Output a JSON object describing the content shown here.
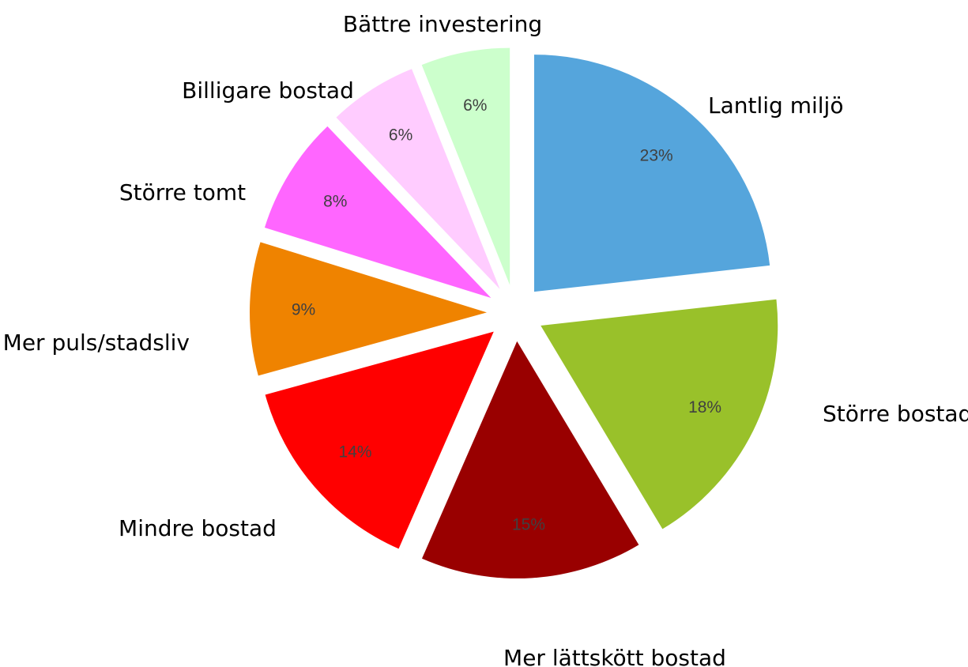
{
  "chart_data": {
    "type": "pie",
    "exploded": true,
    "start_angle_deg": 0,
    "direction": "clockwise",
    "title": "",
    "label_format": "percent",
    "slices": [
      {
        "label": "Lantlig miljö",
        "value": 23,
        "value_label": "23%",
        "color": "#55A5DC"
      },
      {
        "label": "Större bostad",
        "value": 18,
        "value_label": "18%",
        "color": "#99C12A"
      },
      {
        "label": "Mer lättskött bostad",
        "value": 15,
        "value_label": "15%",
        "color": "#990000"
      },
      {
        "label": "Mindre bostad",
        "value": 14,
        "value_label": "14%",
        "color": "#FF0000"
      },
      {
        "label": "Mer puls/stadsliv",
        "value": 9,
        "value_label": "9%",
        "color": "#EF8300"
      },
      {
        "label": "Större tomt",
        "value": 8,
        "value_label": "8%",
        "color": "#FF66FF"
      },
      {
        "label": "Billigare bostad",
        "value": 6,
        "value_label": "6%",
        "color": "#FFCCFF"
      },
      {
        "label": "Bättre investering",
        "value": 6,
        "value_label": "6%",
        "color": "#CCFFCC"
      }
    ]
  }
}
